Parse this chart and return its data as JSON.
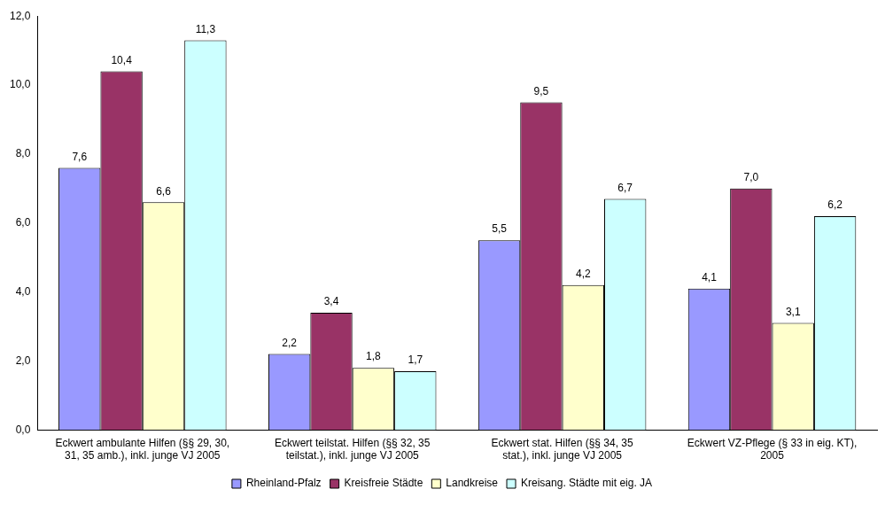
{
  "chart_data": {
    "type": "bar",
    "categories": [
      "Eckwert ambulante Hilfen (§§ 29, 30, 31, 35 amb.), inkl. junge VJ 2005",
      "Eckwert teilstat. Hilfen (§§ 32, 35 teilstat.), inkl. junge VJ 2005",
      "Eckwert stat. Hilfen (§§ 34, 35 stat.), inkl. junge VJ 2005",
      "Eckwert VZ-Pflege (§ 33 in eig. KT), 2005"
    ],
    "series": [
      {
        "name": "Rheinland-Pfalz",
        "color": "#9999ff",
        "values": [
          7.6,
          2.2,
          5.5,
          4.1
        ],
        "value_labels": [
          "7,6",
          "2,2",
          "5,5",
          "4,1"
        ]
      },
      {
        "name": "Kreisfreie Städte",
        "color": "#993366",
        "values": [
          10.4,
          3.4,
          9.5,
          7.0
        ],
        "value_labels": [
          "10,4",
          "3,4",
          "9,5",
          "7,0"
        ]
      },
      {
        "name": "Landkreise",
        "color": "#ffffcc",
        "values": [
          6.6,
          1.8,
          4.2,
          3.1
        ],
        "value_labels": [
          "6,6",
          "1,8",
          "4,2",
          "3,1"
        ]
      },
      {
        "name": "Kreisang. Städte mit eig. JA",
        "color": "#ccffff",
        "values": [
          11.3,
          1.7,
          6.7,
          6.2
        ],
        "value_labels": [
          "11,3",
          "1,7",
          "6,7",
          "6,2"
        ]
      }
    ],
    "ylim": [
      0,
      12
    ],
    "yticks": [
      {
        "value": 0,
        "label": "0,0"
      },
      {
        "value": 2,
        "label": "2,0"
      },
      {
        "value": 4,
        "label": "4,0"
      },
      {
        "value": 6,
        "label": "6,0"
      },
      {
        "value": 8,
        "label": "8,0"
      },
      {
        "value": 10,
        "label": "10,0"
      },
      {
        "value": 12,
        "label": "12,0"
      }
    ],
    "grid": false,
    "legend": "bottom"
  }
}
